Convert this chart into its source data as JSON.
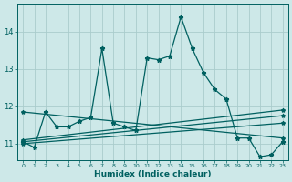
{
  "xlabel": "Humidex (Indice chaleur)",
  "background_color": "#cde8e8",
  "grid_color": "#aacccc",
  "line_color": "#006060",
  "xlim": [
    -0.5,
    23.5
  ],
  "ylim": [
    10.55,
    14.75
  ],
  "yticks": [
    11,
    12,
    13,
    14
  ],
  "xticks": [
    0,
    1,
    2,
    3,
    4,
    5,
    6,
    7,
    8,
    9,
    10,
    11,
    12,
    13,
    14,
    15,
    16,
    17,
    18,
    19,
    20,
    21,
    22,
    23
  ],
  "series": [
    {
      "x": [
        0,
        1,
        2,
        3,
        4,
        5,
        6,
        7,
        8,
        9,
        10,
        11,
        12,
        13,
        14,
        15,
        16,
        17,
        18,
        19,
        20,
        21,
        22,
        23
      ],
      "y": [
        11.05,
        10.9,
        11.85,
        11.45,
        11.45,
        11.6,
        11.7,
        13.55,
        11.55,
        11.45,
        11.35,
        13.3,
        13.25,
        13.35,
        14.4,
        13.55,
        12.9,
        12.45,
        12.2,
        11.15,
        11.15,
        10.65,
        10.7,
        11.05
      ]
    },
    {
      "x": [
        0,
        23
      ],
      "y": [
        11.0,
        11.55
      ]
    },
    {
      "x": [
        0,
        23
      ],
      "y": [
        11.05,
        11.75
      ]
    },
    {
      "x": [
        0,
        23
      ],
      "y": [
        11.1,
        11.9
      ]
    },
    {
      "x": [
        0,
        23
      ],
      "y": [
        11.85,
        11.15
      ]
    }
  ]
}
